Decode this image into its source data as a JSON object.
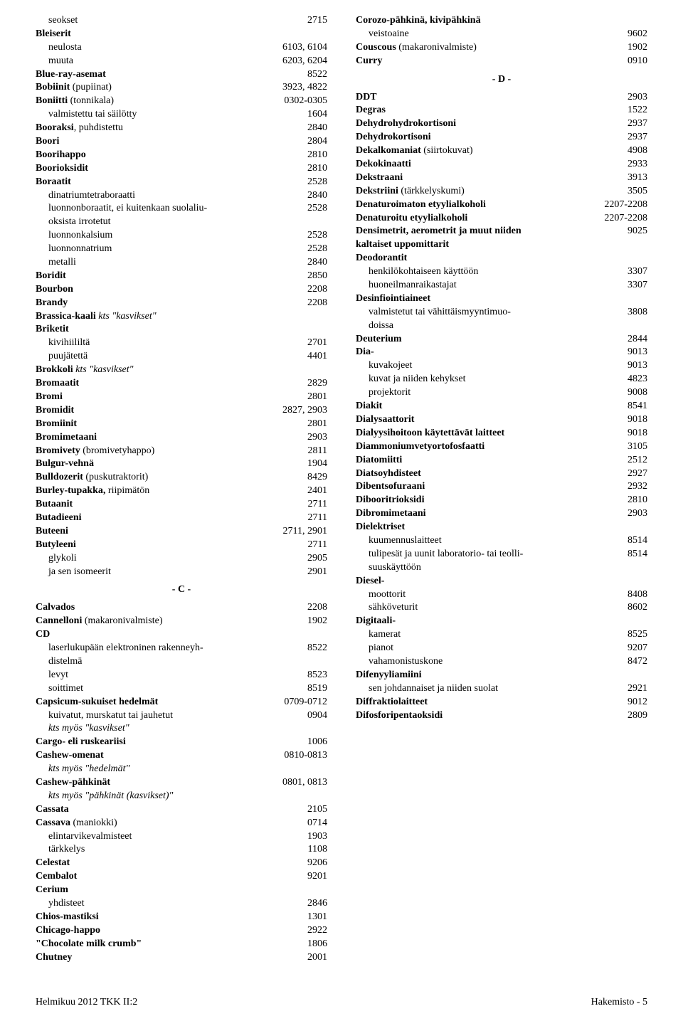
{
  "entries": [
    {
      "label": "seokset",
      "value": "2715",
      "indent": 1
    },
    {
      "label": "Bleiserit",
      "value": "",
      "bold": true
    },
    {
      "label": "neulosta",
      "value": "6103, 6104",
      "indent": 1
    },
    {
      "label": "muuta",
      "value": "6203, 6204",
      "indent": 1
    },
    {
      "label": "Blue-ray-asemat",
      "value": "8522",
      "bold": true
    },
    {
      "label": "Bobiinit (pupiinat)",
      "value": "3923, 4822",
      "boldLabel": "Bobiinit"
    },
    {
      "label": "Boniitti (tonnikala)",
      "value": "0302-0305",
      "boldLabel": "Boniitti"
    },
    {
      "label": "valmistettu tai säilötty",
      "value": "1604",
      "indent": 1
    },
    {
      "label": "Booraksi, puhdistettu",
      "value": "2840",
      "boldLabel": "Booraksi"
    },
    {
      "label": "Boori",
      "value": "2804",
      "bold": true
    },
    {
      "label": "Boorihappo",
      "value": "2810",
      "bold": true
    },
    {
      "label": "Boorioksidit",
      "value": "2810",
      "bold": true
    },
    {
      "label": "Boraatit",
      "value": "2528",
      "bold": true
    },
    {
      "label": "dinatriumtetraboraatti",
      "value": "2840",
      "indent": 1
    },
    {
      "label": "luonnonboraatit, ei kuitenkaan suolaliu-",
      "value": "2528",
      "indent": 1
    },
    {
      "label": "oksista irrotetut",
      "value": "",
      "indent": 1
    },
    {
      "label": "luonnonkalsium",
      "value": "2528",
      "indent": 1
    },
    {
      "label": "luonnonnatrium",
      "value": "2528",
      "indent": 1
    },
    {
      "label": "metalli",
      "value": "2840",
      "indent": 1
    },
    {
      "label": "Boridit",
      "value": "2850",
      "bold": true
    },
    {
      "label": "Bourbon",
      "value": "2208",
      "bold": true
    },
    {
      "label": "Brandy",
      "value": "2208",
      "bold": true
    },
    {
      "label": "Brassica-kaali kts \"kasvikset\"",
      "value": "",
      "boldLabel": "Brassica-kaali",
      "italicRest": true
    },
    {
      "label": "Briketit",
      "value": "",
      "bold": true
    },
    {
      "label": "kivihiililtä",
      "value": "2701",
      "indent": 1
    },
    {
      "label": "puujätettä",
      "value": "4401",
      "indent": 1
    },
    {
      "label": "Brokkoli   kts \"kasvikset\"",
      "value": "",
      "boldLabel": "Brokkoli",
      "italicRest": true
    },
    {
      "label": "Bromaatit",
      "value": "2829",
      "bold": true
    },
    {
      "label": "Bromi",
      "value": "2801",
      "bold": true
    },
    {
      "label": "Bromidit",
      "value": "2827, 2903",
      "bold": true
    },
    {
      "label": "Bromiinit",
      "value": "2801",
      "bold": true
    },
    {
      "label": "Bromimetaani",
      "value": "2903",
      "bold": true
    },
    {
      "label": "Bromivety (bromivetyhappo)",
      "value": "2811",
      "boldLabel": "Bromivety"
    },
    {
      "label": "Bulgur-vehnä",
      "value": "1904",
      "bold": true
    },
    {
      "label": "Bulldozerit (puskutraktorit)",
      "value": "8429",
      "boldLabel": "Bulldozerit"
    },
    {
      "label": "Burley-tupakka, riipimätön",
      "value": "2401",
      "boldLabel": "Burley-tupakka,"
    },
    {
      "label": "Butaanit",
      "value": "2711",
      "bold": true
    },
    {
      "label": "Butadieeni",
      "value": "2711",
      "bold": true
    },
    {
      "label": "Buteeni",
      "value": "2711, 2901",
      "bold": true
    },
    {
      "label": "Butyleeni",
      "value": "2711",
      "bold": true
    },
    {
      "label": "glykoli",
      "value": "2905",
      "indent": 1
    },
    {
      "label": "ja sen isomeerit",
      "value": "2901",
      "indent": 1
    },
    {
      "section": "- C -"
    },
    {
      "label": "Calvados",
      "value": "2208",
      "bold": true
    },
    {
      "label": "Cannelloni (makaronivalmiste)",
      "value": "1902",
      "boldLabel": "Cannelloni"
    },
    {
      "label": "CD",
      "value": "",
      "bold": true
    },
    {
      "label": "laserlukupään elektroninen rakenneyh-",
      "value": "8522",
      "indent": 1
    },
    {
      "label": "distelmä",
      "value": "",
      "indent": 1
    },
    {
      "label": "levyt",
      "value": "8523",
      "indent": 1
    },
    {
      "label": "soittimet",
      "value": "8519",
      "indent": 1
    },
    {
      "label": "Capsicum-sukuiset hedelmät",
      "value": "0709-0712",
      "bold": true
    },
    {
      "label": "kuivatut, murskatut tai jauhetut",
      "value": "0904",
      "indent": 1
    },
    {
      "label": "kts myös \"kasvikset\"",
      "value": "",
      "indent": 1,
      "italic": true
    },
    {
      "label": "Cargo- eli ruskeariisi",
      "value": "1006",
      "bold": true
    },
    {
      "label": "Cashew-omenat",
      "value": "0810-0813",
      "bold": true
    },
    {
      "label": "kts myös \"hedelmät\"",
      "value": "",
      "indent": 1,
      "italic": true
    },
    {
      "label": "Cashew-pähkinät",
      "value": "0801, 0813",
      "bold": true
    },
    {
      "label": "kts myös \"pähkinät (kasvikset)\"",
      "value": "",
      "indent": 1,
      "italic": true
    },
    {
      "label": "Cassata",
      "value": "2105",
      "bold": true
    },
    {
      "label": "Cassava (maniokki)",
      "value": "0714",
      "boldLabel": "Cassava"
    },
    {
      "label": "elintarvikevalmisteet",
      "value": "1903",
      "indent": 1
    },
    {
      "label": "tärkkelys",
      "value": "1108",
      "indent": 1
    },
    {
      "label": "Celestat",
      "value": "9206",
      "bold": true
    },
    {
      "label": "Cembalot",
      "value": "9201",
      "bold": true
    },
    {
      "label": "Cerium",
      "value": "",
      "bold": true
    },
    {
      "label": "yhdisteet",
      "value": "2846",
      "indent": 1
    },
    {
      "label": "Chios-mastiksi",
      "value": "1301",
      "bold": true
    },
    {
      "label": "Chicago-happo",
      "value": "2922",
      "bold": true
    },
    {
      "label": "\"Chocolate milk crumb\"",
      "value": "1806",
      "bold": true
    },
    {
      "label": "Chutney",
      "value": "2001",
      "bold": true
    },
    {
      "label": "Corozo-pähkinä, kivipähkinä",
      "value": "",
      "bold": true
    },
    {
      "label": "veistoaine",
      "value": "9602",
      "indent": 1
    },
    {
      "label": "Couscous (makaronivalmiste)",
      "value": "1902",
      "boldLabel": "Couscous"
    },
    {
      "label": "Curry",
      "value": "0910",
      "bold": true
    },
    {
      "section": "- D -"
    },
    {
      "label": "DDT",
      "value": "2903",
      "bold": true
    },
    {
      "label": "Degras",
      "value": "1522",
      "bold": true
    },
    {
      "label": "Dehydrohydrokortisoni",
      "value": "2937",
      "bold": true
    },
    {
      "label": "Dehydrokortisoni",
      "value": "2937",
      "bold": true
    },
    {
      "label": "Dekalkomaniat (siirtokuvat)",
      "value": "4908",
      "boldLabel": "Dekalkomaniat"
    },
    {
      "label": "Dekokinaatti",
      "value": "2933",
      "bold": true
    },
    {
      "label": "Dekstraani",
      "value": "3913",
      "bold": true
    },
    {
      "label": "Dekstriini (tärkkelyskumi)",
      "value": "3505",
      "boldLabel": "Dekstriini"
    },
    {
      "label": "Denaturoimaton etyylialkoholi",
      "value": "2207-2208",
      "bold": true
    },
    {
      "label": "Denaturoitu etyylialkoholi",
      "value": "2207-2208",
      "bold": true
    },
    {
      "label": "Densimetrit, aerometrit ja muut niiden",
      "value": "9025",
      "bold": true
    },
    {
      "label": "kaltaiset uppomittarit",
      "value": "",
      "bold": true
    },
    {
      "label": "Deodorantit",
      "value": "",
      "bold": true
    },
    {
      "label": "henkilökohtaiseen käyttöön",
      "value": "3307",
      "indent": 1
    },
    {
      "label": "huoneilmanraikastajat",
      "value": "3307",
      "indent": 1
    },
    {
      "label": "Desinfiointiaineet",
      "value": "",
      "bold": true
    },
    {
      "label": "valmistetut tai vähittäismyyntimuo-",
      "value": "3808",
      "indent": 1
    },
    {
      "label": "doissa",
      "value": "",
      "indent": 1
    },
    {
      "label": "Deuterium",
      "value": "2844",
      "bold": true
    },
    {
      "label": "Dia-",
      "value": "9013",
      "bold": true
    },
    {
      "label": "kuvakojeet",
      "value": "9013",
      "indent": 1
    },
    {
      "label": "kuvat ja niiden kehykset",
      "value": "4823",
      "indent": 1
    },
    {
      "label": "projektorit",
      "value": "9008",
      "indent": 1
    },
    {
      "label": "Diakit",
      "value": "8541",
      "bold": true
    },
    {
      "label": "Dialysaattorit",
      "value": "9018",
      "bold": true
    },
    {
      "label": "Dialyysihoitoon käytettävät laitteet",
      "value": "9018",
      "bold": true
    },
    {
      "label": "Diammoniumvetyortofosfaatti",
      "value": "3105",
      "bold": true
    },
    {
      "label": "Diatomiitti",
      "value": "2512",
      "bold": true
    },
    {
      "label": "Diatsoyhdisteet",
      "value": "2927",
      "bold": true
    },
    {
      "label": "Dibentsofuraani",
      "value": "2932",
      "bold": true
    },
    {
      "label": "Dibooritrioksidi",
      "value": "2810",
      "bold": true
    },
    {
      "label": "Dibromimetaani",
      "value": "2903",
      "bold": true
    },
    {
      "label": "Dielektriset",
      "value": "",
      "bold": true
    },
    {
      "label": "kuumennuslaitteet",
      "value": "8514",
      "indent": 1
    },
    {
      "label": "tulipesät ja uunit laboratorio- tai teolli-",
      "value": "8514",
      "indent": 1
    },
    {
      "label": "suuskäyttöön",
      "value": "",
      "indent": 1
    },
    {
      "label": "Diesel-",
      "value": "",
      "bold": true
    },
    {
      "label": "moottorit",
      "value": "8408",
      "indent": 1
    },
    {
      "label": "sähköveturit",
      "value": "8602",
      "indent": 1
    },
    {
      "label": "Digitaali-",
      "value": "",
      "bold": true
    },
    {
      "label": "kamerat",
      "value": "8525",
      "indent": 1
    },
    {
      "label": "pianot",
      "value": "9207",
      "indent": 1
    },
    {
      "label": "vahamonistuskone",
      "value": "8472",
      "indent": 1
    },
    {
      "label": "Difenyyliamiini",
      "value": "",
      "bold": true
    },
    {
      "label": "sen johdannaiset ja niiden suolat",
      "value": "2921",
      "indent": 1
    },
    {
      "label": "Diffraktiolaitteet",
      "value": "9012",
      "bold": true
    },
    {
      "label": "Difosforipentaoksidi",
      "value": "2809",
      "bold": true
    }
  ],
  "footer": {
    "left": "Helmikuu 2012 TKK II:2",
    "right": "Hakemisto - 5"
  }
}
